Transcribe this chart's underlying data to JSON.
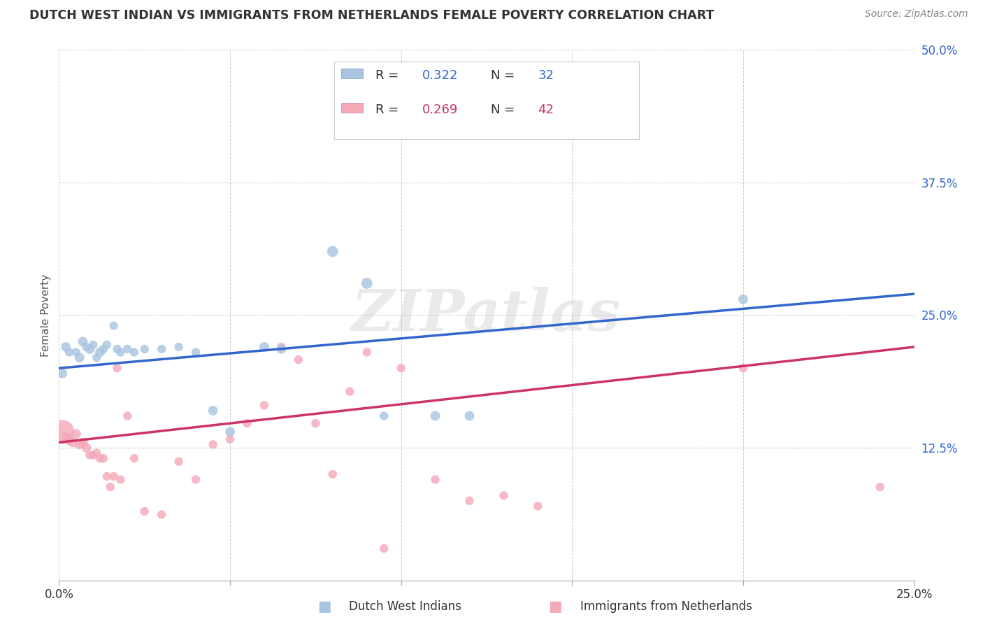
{
  "title": "DUTCH WEST INDIAN VS IMMIGRANTS FROM NETHERLANDS FEMALE POVERTY CORRELATION CHART",
  "source": "Source: ZipAtlas.com",
  "ylabel": "Female Poverty",
  "x_min": 0.0,
  "x_max": 0.25,
  "y_min": 0.0,
  "y_max": 0.5,
  "x_ticks": [
    0.0,
    0.05,
    0.1,
    0.15,
    0.2,
    0.25
  ],
  "x_tick_labels": [
    "0.0%",
    "",
    "",
    "",
    "",
    "25.0%"
  ],
  "y_ticks": [
    0.0,
    0.125,
    0.25,
    0.375,
    0.5
  ],
  "y_tick_labels": [
    "",
    "12.5%",
    "25.0%",
    "37.5%",
    "50.0%"
  ],
  "blue_R": "0.322",
  "blue_N": "32",
  "pink_R": "0.269",
  "pink_N": "42",
  "legend_label_blue": "Dutch West Indians",
  "legend_label_pink": "Immigrants from Netherlands",
  "blue_color": "#A8C4E0",
  "pink_color": "#F4A8B8",
  "blue_line_color": "#3366CC",
  "pink_line_color": "#CC3366",
  "watermark": "ZIPatlas",
  "blue_line_intercept": 0.2,
  "blue_line_slope": 0.28,
  "pink_line_intercept": 0.13,
  "pink_line_slope": 0.36,
  "blue_points": [
    [
      0.001,
      0.195
    ],
    [
      0.002,
      0.22
    ],
    [
      0.003,
      0.215
    ],
    [
      0.005,
      0.215
    ],
    [
      0.006,
      0.21
    ],
    [
      0.007,
      0.225
    ],
    [
      0.008,
      0.22
    ],
    [
      0.009,
      0.218
    ],
    [
      0.01,
      0.222
    ],
    [
      0.011,
      0.21
    ],
    [
      0.012,
      0.215
    ],
    [
      0.013,
      0.218
    ],
    [
      0.014,
      0.222
    ],
    [
      0.016,
      0.24
    ],
    [
      0.017,
      0.218
    ],
    [
      0.018,
      0.215
    ],
    [
      0.02,
      0.218
    ],
    [
      0.022,
      0.215
    ],
    [
      0.025,
      0.218
    ],
    [
      0.03,
      0.218
    ],
    [
      0.035,
      0.22
    ],
    [
      0.04,
      0.215
    ],
    [
      0.045,
      0.16
    ],
    [
      0.05,
      0.14
    ],
    [
      0.06,
      0.22
    ],
    [
      0.065,
      0.218
    ],
    [
      0.08,
      0.31
    ],
    [
      0.09,
      0.28
    ],
    [
      0.095,
      0.155
    ],
    [
      0.11,
      0.155
    ],
    [
      0.12,
      0.155
    ],
    [
      0.2,
      0.265
    ]
  ],
  "pink_points": [
    [
      0.001,
      0.14
    ],
    [
      0.002,
      0.135
    ],
    [
      0.003,
      0.132
    ],
    [
      0.004,
      0.13
    ],
    [
      0.005,
      0.138
    ],
    [
      0.006,
      0.128
    ],
    [
      0.007,
      0.13
    ],
    [
      0.008,
      0.125
    ],
    [
      0.009,
      0.118
    ],
    [
      0.01,
      0.118
    ],
    [
      0.011,
      0.12
    ],
    [
      0.012,
      0.115
    ],
    [
      0.013,
      0.115
    ],
    [
      0.014,
      0.098
    ],
    [
      0.015,
      0.088
    ],
    [
      0.016,
      0.098
    ],
    [
      0.017,
      0.2
    ],
    [
      0.018,
      0.095
    ],
    [
      0.02,
      0.155
    ],
    [
      0.022,
      0.115
    ],
    [
      0.025,
      0.065
    ],
    [
      0.03,
      0.062
    ],
    [
      0.035,
      0.112
    ],
    [
      0.04,
      0.095
    ],
    [
      0.045,
      0.128
    ],
    [
      0.05,
      0.133
    ],
    [
      0.055,
      0.148
    ],
    [
      0.06,
      0.165
    ],
    [
      0.065,
      0.22
    ],
    [
      0.07,
      0.208
    ],
    [
      0.075,
      0.148
    ],
    [
      0.08,
      0.1
    ],
    [
      0.085,
      0.178
    ],
    [
      0.09,
      0.215
    ],
    [
      0.095,
      0.03
    ],
    [
      0.1,
      0.2
    ],
    [
      0.11,
      0.095
    ],
    [
      0.12,
      0.075
    ],
    [
      0.13,
      0.08
    ],
    [
      0.14,
      0.07
    ],
    [
      0.2,
      0.2
    ],
    [
      0.24,
      0.088
    ]
  ],
  "blue_sizes": [
    100,
    100,
    80,
    80,
    100,
    100,
    80,
    100,
    80,
    80,
    100,
    80,
    80,
    80,
    80,
    80,
    80,
    80,
    80,
    80,
    80,
    80,
    100,
    100,
    100,
    100,
    130,
    130,
    80,
    100,
    100,
    100
  ],
  "pink_sizes": [
    600,
    100,
    100,
    100,
    100,
    100,
    100,
    100,
    80,
    80,
    80,
    80,
    80,
    80,
    80,
    80,
    80,
    80,
    80,
    80,
    80,
    80,
    80,
    80,
    80,
    80,
    80,
    80,
    80,
    80,
    80,
    80,
    80,
    80,
    80,
    80,
    80,
    80,
    80,
    80,
    80,
    80
  ]
}
